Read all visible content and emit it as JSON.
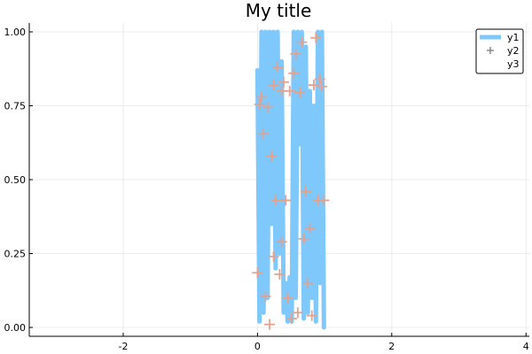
{
  "chart_data": {
    "type": "line",
    "title": "My title",
    "xlabel": "",
    "ylabel": "",
    "xlim": [
      -3.4,
      4.05
    ],
    "ylim": [
      -0.03,
      1.03
    ],
    "grid": true,
    "legend_position": "top-right",
    "x_ticks": [
      -2,
      0,
      2,
      4
    ],
    "x_tick_labels": [
      "-2",
      "0",
      "2",
      "4"
    ],
    "y_ticks": [
      0,
      0.25,
      0.5,
      0.75,
      1.0
    ],
    "y_tick_labels": [
      "0.00",
      "0.25",
      "0.50",
      "0.75",
      "1.00"
    ],
    "series": [
      {
        "name": "y1",
        "kind": "line",
        "color": "#7fc8fb",
        "x": [
          0.0,
          0.03,
          0.06,
          0.09,
          0.12,
          0.15,
          0.18,
          0.21,
          0.24,
          0.27,
          0.3,
          0.33,
          0.36,
          0.39,
          0.42,
          0.45,
          0.48,
          0.51,
          0.54,
          0.57,
          0.6,
          0.63,
          0.66,
          0.69,
          0.72,
          0.75,
          0.78,
          0.81,
          0.84,
          0.87,
          0.9,
          0.93,
          0.96,
          0.99
        ],
        "y": [
          0.87,
          0.02,
          1.0,
          0.05,
          1.0,
          0.1,
          1.0,
          0.35,
          1.0,
          0.2,
          1.0,
          0.25,
          0.9,
          0.05,
          0.15,
          0.02,
          0.17,
          0.02,
          1.0,
          0.1,
          1.0,
          0.62,
          1.0,
          0.03,
          0.95,
          0.05,
          0.8,
          0.1,
          0.75,
          0.02,
          1.0,
          0.15,
          1.0,
          0.0
        ]
      },
      {
        "name": "y2",
        "kind": "scatter",
        "color": "#e2a28f",
        "x": [
          0.0,
          0.03,
          0.06,
          0.09,
          0.12,
          0.15,
          0.18,
          0.21,
          0.24,
          0.27,
          0.3,
          0.33,
          0.36,
          0.39,
          0.42,
          0.45,
          0.48,
          0.51,
          0.54,
          0.57,
          0.6,
          0.63,
          0.66,
          0.69,
          0.72,
          0.75,
          0.78,
          0.81,
          0.84,
          0.87,
          0.9,
          0.93,
          0.96,
          0.99,
          0.24,
          0.36
        ],
        "y": [
          0.185,
          0.755,
          0.78,
          0.655,
          0.105,
          0.745,
          0.01,
          0.58,
          0.24,
          0.43,
          0.88,
          0.18,
          0.29,
          0.83,
          0.43,
          0.1,
          0.8,
          0.03,
          0.86,
          0.925,
          0.05,
          0.795,
          0.965,
          0.3,
          0.46,
          0.15,
          0.335,
          0.04,
          0.82,
          0.98,
          0.43,
          0.84,
          0.815,
          0.43,
          0.82,
          0.8
        ]
      },
      {
        "name": "y3",
        "kind": "line",
        "color": "#ffffff",
        "x": [],
        "y": []
      }
    ]
  }
}
